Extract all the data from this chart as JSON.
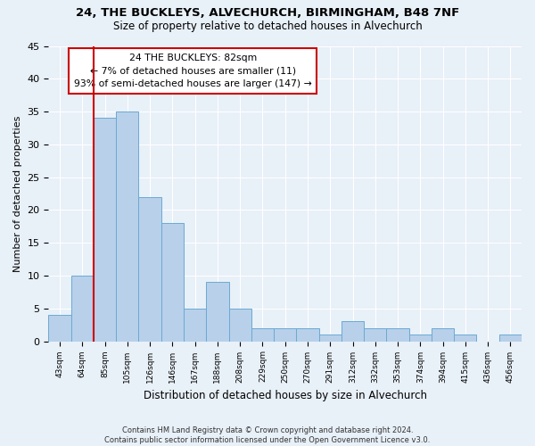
{
  "title1": "24, THE BUCKLEYS, ALVECHURCH, BIRMINGHAM, B48 7NF",
  "title2": "Size of property relative to detached houses in Alvechurch",
  "xlabel": "Distribution of detached houses by size in Alvechurch",
  "ylabel": "Number of detached properties",
  "footnote1": "Contains HM Land Registry data © Crown copyright and database right 2024.",
  "footnote2": "Contains public sector information licensed under the Open Government Licence v3.0.",
  "bar_labels": [
    "43sqm",
    "64sqm",
    "85sqm",
    "105sqm",
    "126sqm",
    "146sqm",
    "167sqm",
    "188sqm",
    "208sqm",
    "229sqm",
    "250sqm",
    "270sqm",
    "291sqm",
    "312sqm",
    "332sqm",
    "353sqm",
    "374sqm",
    "394sqm",
    "415sqm",
    "436sqm",
    "456sqm"
  ],
  "bar_values": [
    4,
    10,
    34,
    35,
    22,
    18,
    5,
    9,
    5,
    2,
    2,
    2,
    1,
    3,
    2,
    2,
    1,
    2,
    1,
    0,
    1
  ],
  "bar_color": "#b8d0ea",
  "bar_edge_color": "#6aaad4",
  "annotation_text": "24 THE BUCKLEYS: 82sqm\n← 7% of detached houses are smaller (11)\n93% of semi-detached houses are larger (147) →",
  "vline_color": "#cc0000",
  "annotation_box_color": "#ffffff",
  "annotation_box_edge_color": "#cc0000",
  "ylim": [
    0,
    45
  ],
  "yticks": [
    0,
    5,
    10,
    15,
    20,
    25,
    30,
    35,
    40,
    45
  ],
  "background_color": "#e8f0f8",
  "plot_bg_color": "#e8f0f8",
  "grid_color": "#ffffff"
}
